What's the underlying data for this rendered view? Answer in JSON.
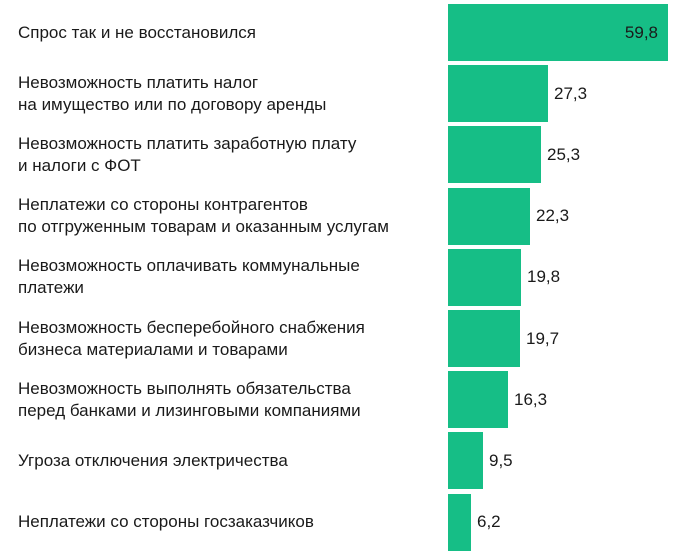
{
  "chart_data": {
    "type": "bar",
    "orientation": "horizontal",
    "title": "",
    "xlabel": "",
    "ylabel": "",
    "categories": [
      "Спрос так и не восстановился",
      "Невозможность платить налог\nна имущество или по договору аренды",
      "Невозможность платить заработную плату\nи налоги с ФОТ",
      "Неплатежи со стороны контрагентов\nпо отгруженным товарам и оказанным услугам",
      "Невозможность оплачивать коммунальные\nплатежи",
      "Невозможность бесперебойного снабжения\nбизнеса материалами и товарами",
      "Невозможность выполнять обязательства\nперед банками и лизинговыми компаниями",
      "Угроза отключения электричества",
      "Неплатежи со стороны госзаказчиков"
    ],
    "values": [
      59.8,
      27.3,
      25.3,
      22.3,
      19.8,
      19.7,
      16.3,
      9.5,
      6.2
    ],
    "value_labels": [
      "59,8",
      "27,3",
      "25,3",
      "22,3",
      "19,8",
      "19,7",
      "16,3",
      "9,5",
      "6,2"
    ],
    "xlim": [
      0,
      59.8
    ],
    "grid": false,
    "legend": "none",
    "bar_color": "#16be86"
  }
}
